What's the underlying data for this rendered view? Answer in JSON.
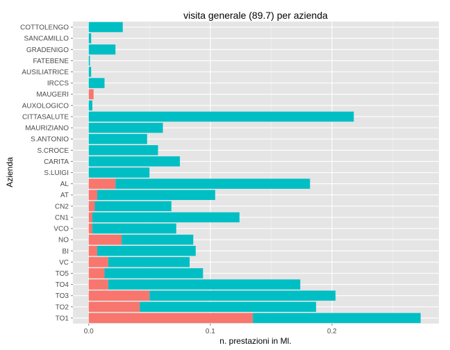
{
  "chart_data": {
    "type": "bar",
    "orientation": "horizontal",
    "stacked": true,
    "title": "visita generale (89.7) per azienda",
    "xlabel": "n. prestazioni in Ml.",
    "ylabel": "Azienda",
    "xlim": [
      -0.013,
      0.288
    ],
    "xticks": [
      0.0,
      0.1,
      0.2
    ],
    "xtick_labels": [
      "0.0",
      "0.1",
      "0.2"
    ],
    "grid": true,
    "legend": "none",
    "categories": [
      "TO1",
      "TO2",
      "TO3",
      "TO4",
      "TO5",
      "VC",
      "BI",
      "NO",
      "VCO",
      "CN1",
      "CN2",
      "AT",
      "AL",
      "S.LUIGI",
      "CARITA",
      "S.CROCE",
      "S.ANTONIO",
      "MAURIZIANO",
      "CITTASALUTE",
      "AUXOLOGICO",
      "MAUGERI",
      "IRCCS",
      "AUSILIATRICE",
      "FATEBENE",
      "GRADENIGO",
      "SANCAMILLO",
      "COTTOLENGO"
    ],
    "series": [
      {
        "color": "#F8766D",
        "values": [
          0.135,
          0.042,
          0.05,
          0.016,
          0.013,
          0.016,
          0.007,
          0.027,
          0.003,
          0.003,
          0.005,
          0.007,
          0.022,
          0,
          0,
          0,
          0,
          0,
          0,
          0,
          0.004,
          0,
          0,
          0,
          0,
          0,
          0
        ]
      },
      {
        "color": "#00BFC4",
        "values": [
          0.138,
          0.145,
          0.153,
          0.158,
          0.081,
          0.067,
          0.081,
          0.059,
          0.069,
          0.121,
          0.063,
          0.097,
          0.16,
          0.05,
          0.075,
          0.057,
          0.048,
          0.061,
          0.218,
          0.003,
          0,
          0.013,
          0.002,
          0.001,
          0.022,
          0.002,
          0.028
        ]
      }
    ]
  }
}
